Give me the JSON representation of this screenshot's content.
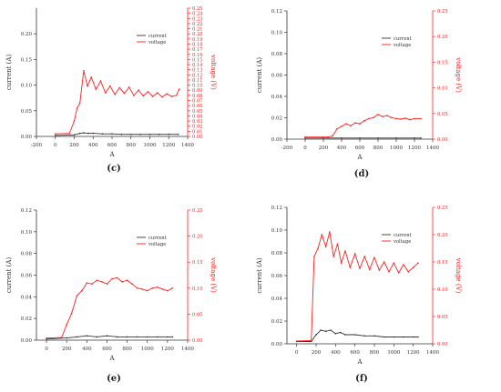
{
  "colors": {
    "current": "#333333",
    "voltage": "#ff2020",
    "axis_left": "#333333",
    "axis_right": "#ff2020"
  },
  "chart_data": [
    {
      "type": "line",
      "caption": "(c)",
      "xlabel": "A",
      "ylabel_left": "current (A)",
      "ylabel_right": "voltage (V)",
      "xlim": [
        -200,
        1400
      ],
      "xticks": [
        -200,
        0,
        200,
        400,
        600,
        800,
        1000,
        1200,
        1400
      ],
      "ylim_left": [
        0,
        0.25
      ],
      "yticks_left": [
        0.0,
        0.05,
        0.1,
        0.15,
        0.2
      ],
      "yticks_left_labels": [
        "0.00",
        "0.05",
        "0.10",
        "0.15",
        "0.20"
      ],
      "ylim_right": [
        0,
        0.25
      ],
      "yticks_right": [
        0.0,
        0.01,
        0.02,
        0.03,
        0.04,
        0.05,
        0.06,
        0.07,
        0.08,
        0.09,
        0.1,
        0.11,
        0.12,
        0.13,
        0.14,
        0.15,
        0.16,
        0.17,
        0.18,
        0.19,
        0.2,
        0.21,
        0.22,
        0.23,
        0.24,
        0.25
      ],
      "yticks_right_labels": [
        "0.00",
        "0.01",
        "0.02",
        "0.03",
        "0.04",
        "0.05",
        "0.06",
        "0.07",
        "0.08",
        "0.09",
        "0.10",
        "0.11",
        "0.12",
        "0.13",
        "0.14",
        "0.15",
        "0.16",
        "0.17",
        "0.18",
        "0.19",
        "0.20",
        "0.21",
        "0.22",
        "0.23",
        "0.24",
        "0.25"
      ],
      "legend": [
        "current",
        "voltage"
      ],
      "legend_position": "top-right",
      "series": [
        {
          "name": "current",
          "axis": "left",
          "color": "#333333",
          "x": [
            0,
            200,
            260,
            300,
            350,
            400,
            500,
            600,
            700,
            800,
            900,
            1000,
            1100,
            1200,
            1300
          ],
          "y": [
            0.002,
            0.003,
            0.006,
            0.007,
            0.006,
            0.006,
            0.005,
            0.005,
            0.004,
            0.004,
            0.004,
            0.004,
            0.004,
            0.004,
            0.004
          ]
        },
        {
          "name": "voltage",
          "axis": "right",
          "color": "#ff2020",
          "x": [
            0,
            150,
            200,
            230,
            260,
            300,
            340,
            380,
            430,
            480,
            530,
            580,
            630,
            680,
            730,
            780,
            830,
            880,
            930,
            980,
            1030,
            1080,
            1130,
            1180,
            1230,
            1280,
            1310
          ],
          "y": [
            0.005,
            0.006,
            0.03,
            0.055,
            0.065,
            0.128,
            0.098,
            0.115,
            0.092,
            0.108,
            0.085,
            0.098,
            0.082,
            0.095,
            0.084,
            0.096,
            0.08,
            0.09,
            0.079,
            0.087,
            0.078,
            0.085,
            0.077,
            0.083,
            0.078,
            0.08,
            0.092
          ]
        }
      ]
    },
    {
      "type": "line",
      "caption": "(d)",
      "xlabel": "A",
      "ylabel_left": "current (A)",
      "ylabel_right": "voltage (V)",
      "xlim": [
        -200,
        1400
      ],
      "xticks": [
        -200,
        0,
        200,
        400,
        600,
        800,
        1000,
        1200,
        1400
      ],
      "ylim_left": [
        0,
        0.12
      ],
      "yticks_left": [
        0.0,
        0.02,
        0.04,
        0.06,
        0.08,
        0.1,
        0.12
      ],
      "yticks_left_labels": [
        "0.00",
        "0.02",
        "0.04",
        "0.06",
        "0.08",
        "0.10",
        "0.12"
      ],
      "ylim_right": [
        0,
        0.25
      ],
      "yticks_right": [
        0.0,
        0.05,
        0.1,
        0.15,
        0.2,
        0.25
      ],
      "yticks_right_labels": [
        "0.00",
        "0.05",
        "0.10",
        "0.15",
        "0.20",
        "0.25"
      ],
      "legend": [
        "current",
        "voltage"
      ],
      "legend_position": "top-right",
      "series": [
        {
          "name": "current",
          "axis": "left",
          "color": "#333333",
          "x": [
            0,
            200,
            400,
            600,
            800,
            1000,
            1200,
            1270
          ],
          "y": [
            0.001,
            0.001,
            0.001,
            0.001,
            0.001,
            0.001,
            0.001,
            0.001
          ]
        },
        {
          "name": "voltage",
          "axis": "right",
          "color": "#ff2020",
          "x": [
            0,
            250,
            300,
            350,
            400,
            450,
            500,
            550,
            600,
            650,
            700,
            750,
            800,
            850,
            900,
            950,
            1000,
            1050,
            1100,
            1150,
            1200,
            1270
          ],
          "y": [
            0.004,
            0.004,
            0.006,
            0.02,
            0.025,
            0.03,
            0.026,
            0.032,
            0.03,
            0.036,
            0.04,
            0.042,
            0.048,
            0.044,
            0.046,
            0.042,
            0.04,
            0.039,
            0.041,
            0.038,
            0.04,
            0.04
          ]
        }
      ]
    },
    {
      "type": "line",
      "caption": "(e)",
      "xlabel": "A",
      "ylabel_left": "current (A)",
      "ylabel_right": "voltage (V)",
      "xlim": [
        -100,
        1400
      ],
      "xticks": [
        0,
        200,
        400,
        600,
        800,
        1000,
        1200,
        1400
      ],
      "ylim_left": [
        0,
        0.12
      ],
      "yticks_left": [
        0.0,
        0.02,
        0.04,
        0.06,
        0.08,
        0.1,
        0.12
      ],
      "yticks_left_labels": [
        "0.00",
        "0.02",
        "0.04",
        "0.06",
        "0.08",
        "0.10",
        "0.12"
      ],
      "ylim_right": [
        0,
        0.25
      ],
      "yticks_right": [
        0.0,
        0.05,
        0.1,
        0.15,
        0.2,
        0.25
      ],
      "yticks_right_labels": [
        "0.00",
        "0.05",
        "0.10",
        "0.15",
        "0.20",
        "0.25"
      ],
      "legend": [
        "current",
        "voltage"
      ],
      "legend_position": "top-right",
      "series": [
        {
          "name": "current",
          "axis": "left",
          "color": "#333333",
          "x": [
            0,
            200,
            300,
            400,
            500,
            600,
            700,
            800,
            900,
            1000,
            1100,
            1200,
            1250
          ],
          "y": [
            0.001,
            0.002,
            0.003,
            0.004,
            0.003,
            0.004,
            0.003,
            0.003,
            0.003,
            0.003,
            0.003,
            0.003,
            0.003
          ]
        },
        {
          "name": "voltage",
          "axis": "right",
          "color": "#ff2020",
          "x": [
            0,
            150,
            200,
            250,
            300,
            350,
            400,
            450,
            500,
            550,
            600,
            650,
            700,
            750,
            800,
            850,
            900,
            950,
            1000,
            1050,
            1100,
            1150,
            1200,
            1250
          ],
          "y": [
            0.004,
            0.005,
            0.03,
            0.052,
            0.085,
            0.095,
            0.11,
            0.108,
            0.115,
            0.112,
            0.108,
            0.118,
            0.12,
            0.112,
            0.115,
            0.108,
            0.1,
            0.098,
            0.095,
            0.1,
            0.102,
            0.098,
            0.095,
            0.1
          ]
        }
      ]
    },
    {
      "type": "line",
      "caption": "(f)",
      "xlabel": "A",
      "ylabel_left": "current (A)",
      "ylabel_right": "voltage (V)",
      "xlim": [
        -100,
        1400
      ],
      "xticks": [
        0,
        200,
        400,
        600,
        800,
        1000,
        1200,
        1400
      ],
      "ylim_left": [
        0,
        0.12
      ],
      "yticks_left": [
        0.0,
        0.02,
        0.04,
        0.06,
        0.08,
        0.1,
        0.12
      ],
      "yticks_left_labels": [
        "0.00",
        "0.02",
        "0.04",
        "0.06",
        "0.08",
        "0.10",
        "0.12"
      ],
      "ylim_right": [
        0,
        0.25
      ],
      "yticks_right": [
        0.0,
        0.05,
        0.1,
        0.15,
        0.2,
        0.25
      ],
      "yticks_right_labels": [
        "0.00",
        "0.05",
        "0.10",
        "0.15",
        "0.20",
        "0.25"
      ],
      "legend": [
        "current",
        "voltage"
      ],
      "legend_position": "top-right",
      "series": [
        {
          "name": "current",
          "axis": "left",
          "color": "#333333",
          "x": [
            0,
            150,
            200,
            250,
            300,
            350,
            400,
            450,
            500,
            600,
            700,
            800,
            900,
            1000,
            1100,
            1200,
            1250
          ],
          "y": [
            0.002,
            0.002,
            0.008,
            0.012,
            0.011,
            0.012,
            0.009,
            0.01,
            0.008,
            0.008,
            0.007,
            0.007,
            0.006,
            0.006,
            0.006,
            0.006,
            0.006
          ]
        },
        {
          "name": "voltage",
          "axis": "right",
          "color": "#ff2020",
          "x": [
            0,
            150,
            180,
            220,
            260,
            300,
            340,
            380,
            420,
            460,
            500,
            550,
            600,
            650,
            700,
            750,
            800,
            850,
            900,
            950,
            1000,
            1050,
            1100,
            1150,
            1200,
            1250
          ],
          "y": [
            0.005,
            0.006,
            0.16,
            0.175,
            0.2,
            0.178,
            0.205,
            0.16,
            0.183,
            0.148,
            0.17,
            0.14,
            0.165,
            0.138,
            0.16,
            0.136,
            0.158,
            0.135,
            0.15,
            0.132,
            0.148,
            0.13,
            0.145,
            0.132,
            0.14,
            0.148
          ]
        }
      ]
    }
  ]
}
